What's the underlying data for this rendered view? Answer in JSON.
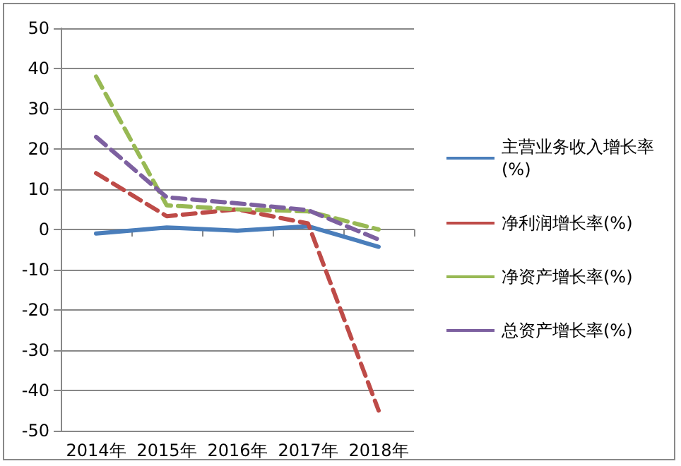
{
  "chart_data": {
    "type": "line",
    "categories": [
      "2014年",
      "2015年",
      "2016年",
      "2017年",
      "2018年"
    ],
    "series": [
      {
        "name": "主营业务收入增长率(%)",
        "color": "#4a7ebb",
        "line_style": "solid",
        "values": [
          -1,
          0.5,
          -0.3,
          0.8,
          -4.3
        ]
      },
      {
        "name": "净利润增长率(%)",
        "color": "#be4b48",
        "line_style": "dashed",
        "values": [
          14,
          3.3,
          5,
          1.5,
          -45
        ]
      },
      {
        "name": "净资产增长率(%)",
        "color": "#98b954",
        "line_style": "dashed",
        "values": [
          38,
          6,
          5,
          4.5,
          0
        ]
      },
      {
        "name": "总资产增长率(%)",
        "color": "#7d60a0",
        "line_style": "dashed",
        "values": [
          23,
          8,
          6.5,
          4.8,
          -2.5
        ]
      }
    ],
    "ylim": [
      -50,
      50
    ],
    "yticks": [
      -50,
      -40,
      -30,
      -20,
      -10,
      0,
      10,
      20,
      30,
      40,
      50
    ],
    "grid": "y",
    "legend": "right",
    "marker": "none"
  }
}
